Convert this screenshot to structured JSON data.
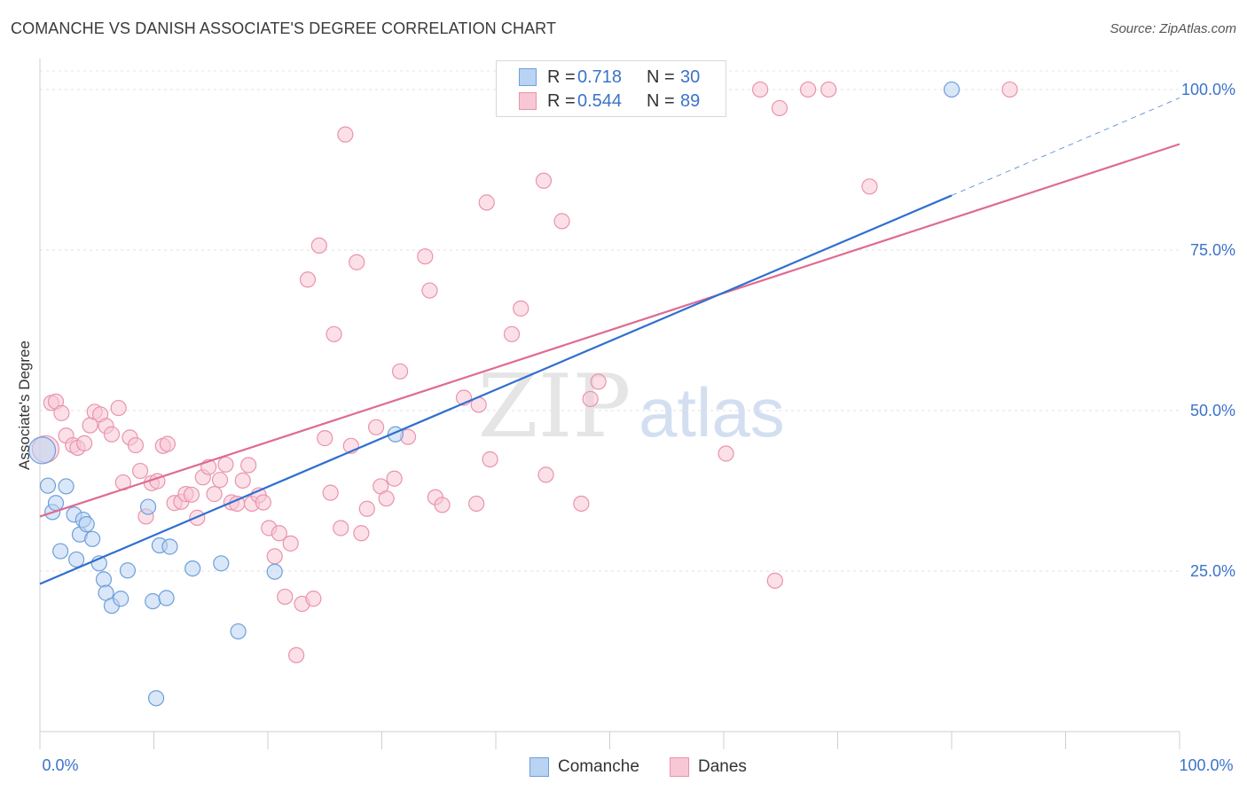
{
  "title": "COMANCHE VS DANISH ASSOCIATE'S DEGREE CORRELATION CHART",
  "source": "Source: ZipAtlas.com",
  "legend": {
    "r_label": "R =",
    "n_label": "N =",
    "comanche": {
      "r": "0.718",
      "n": "30"
    },
    "danes": {
      "r": "0.544",
      "n": "89"
    }
  },
  "bottom_legend": {
    "comanche": "Comanche",
    "danes": "Danes"
  },
  "colors": {
    "comanche_fill": "#b9d3f2",
    "comanche_stroke": "#6f9fda",
    "comanche_line": "#2f6fcf",
    "danes_fill": "#f8c7d5",
    "danes_stroke": "#ea93ac",
    "danes_line": "#df6b92",
    "value_text": "#3b73c9"
  },
  "chart_data": {
    "type": "scatter",
    "title": "COMANCHE VS DANISH ASSOCIATE'S DEGREE CORRELATION CHART",
    "xlabel": "",
    "ylabel": "Associate's Degree",
    "xlim": [
      0,
      100
    ],
    "ylim": [
      0,
      104
    ],
    "x_tick_labels": [
      "0.0%",
      "100.0%"
    ],
    "y_ticks": [
      {
        "value": 25,
        "label": "25.0%"
      },
      {
        "value": 50,
        "label": "50.0%"
      },
      {
        "value": 75,
        "label": "75.0%"
      },
      {
        "value": 100,
        "label": "100.0%"
      }
    ],
    "watermark": {
      "zip": "ZIP",
      "atlas": "atlas"
    },
    "series": [
      {
        "name": "Comanche",
        "r": 0.718,
        "n": 30,
        "trend": {
          "x0": 0,
          "y0": 23,
          "x1": 80,
          "y1": 83.5,
          "dash_to_x": 100,
          "dash_to_y": 98.7
        },
        "points": [
          [
            0.2,
            43.8
          ],
          [
            0.7,
            38.3
          ],
          [
            1.1,
            34.2
          ],
          [
            1.4,
            35.6
          ],
          [
            1.8,
            28.1
          ],
          [
            2.3,
            38.2
          ],
          [
            3.0,
            33.8
          ],
          [
            3.2,
            26.8
          ],
          [
            3.5,
            30.7
          ],
          [
            3.8,
            33.0
          ],
          [
            4.1,
            32.3
          ],
          [
            4.6,
            30.0
          ],
          [
            5.2,
            26.2
          ],
          [
            5.6,
            23.7
          ],
          [
            5.8,
            21.6
          ],
          [
            6.3,
            19.6
          ],
          [
            7.1,
            20.7
          ],
          [
            7.7,
            25.1
          ],
          [
            9.5,
            35.0
          ],
          [
            9.9,
            20.3
          ],
          [
            10.2,
            5.2
          ],
          [
            10.5,
            29.0
          ],
          [
            11.1,
            20.8
          ],
          [
            11.4,
            28.8
          ],
          [
            13.4,
            25.4
          ],
          [
            15.9,
            26.2
          ],
          [
            17.4,
            15.6
          ],
          [
            20.6,
            24.9
          ],
          [
            31.2,
            46.3
          ],
          [
            80.0,
            100.0
          ]
        ]
      },
      {
        "name": "Danes",
        "r": 0.544,
        "n": 89,
        "trend": {
          "x0": 0,
          "y0": 33.5,
          "x1": 100,
          "y1": 91.5
        },
        "points": [
          [
            0.5,
            44.0
          ],
          [
            1.0,
            51.2
          ],
          [
            1.4,
            51.4
          ],
          [
            1.9,
            49.6
          ],
          [
            2.3,
            46.1
          ],
          [
            2.9,
            44.6
          ],
          [
            3.3,
            44.2
          ],
          [
            3.9,
            44.9
          ],
          [
            4.4,
            47.7
          ],
          [
            4.8,
            49.8
          ],
          [
            5.3,
            49.4
          ],
          [
            5.8,
            47.6
          ],
          [
            6.3,
            46.3
          ],
          [
            6.9,
            50.4
          ],
          [
            7.3,
            38.8
          ],
          [
            7.9,
            45.8
          ],
          [
            8.4,
            44.6
          ],
          [
            8.8,
            40.6
          ],
          [
            9.3,
            33.5
          ],
          [
            9.8,
            38.7
          ],
          [
            10.3,
            39.0
          ],
          [
            10.8,
            44.5
          ],
          [
            11.2,
            44.8
          ],
          [
            11.8,
            35.6
          ],
          [
            12.4,
            35.8
          ],
          [
            12.8,
            37.0
          ],
          [
            13.3,
            36.9
          ],
          [
            13.8,
            33.3
          ],
          [
            14.3,
            39.6
          ],
          [
            14.8,
            41.2
          ],
          [
            15.3,
            37.0
          ],
          [
            15.8,
            39.2
          ],
          [
            16.3,
            41.6
          ],
          [
            16.8,
            35.7
          ],
          [
            17.3,
            35.5
          ],
          [
            17.8,
            39.1
          ],
          [
            18.3,
            41.5
          ],
          [
            18.6,
            35.5
          ],
          [
            19.2,
            36.8
          ],
          [
            19.6,
            35.7
          ],
          [
            20.1,
            31.7
          ],
          [
            20.6,
            27.3
          ],
          [
            21.0,
            30.9
          ],
          [
            21.5,
            21.0
          ],
          [
            22.0,
            29.3
          ],
          [
            22.5,
            11.9
          ],
          [
            23.0,
            19.9
          ],
          [
            23.5,
            70.4
          ],
          [
            24.0,
            20.7
          ],
          [
            24.5,
            75.7
          ],
          [
            25.0,
            45.7
          ],
          [
            25.5,
            37.2
          ],
          [
            25.8,
            61.9
          ],
          [
            26.4,
            31.7
          ],
          [
            26.8,
            93.0
          ],
          [
            27.3,
            44.5
          ],
          [
            27.8,
            73.1
          ],
          [
            28.2,
            30.9
          ],
          [
            28.7,
            34.7
          ],
          [
            29.5,
            47.4
          ],
          [
            29.9,
            38.2
          ],
          [
            30.4,
            36.3
          ],
          [
            31.1,
            39.4
          ],
          [
            31.6,
            56.1
          ],
          [
            32.3,
            45.9
          ],
          [
            33.8,
            74.0
          ],
          [
            34.2,
            68.7
          ],
          [
            34.7,
            36.5
          ],
          [
            35.3,
            35.3
          ],
          [
            37.2,
            52.0
          ],
          [
            38.3,
            35.5
          ],
          [
            38.5,
            50.9
          ],
          [
            39.2,
            82.4
          ],
          [
            39.5,
            42.4
          ],
          [
            41.4,
            61.9
          ],
          [
            42.2,
            65.9
          ],
          [
            44.2,
            85.8
          ],
          [
            44.4,
            40.0
          ],
          [
            45.8,
            79.5
          ],
          [
            47.5,
            35.5
          ],
          [
            48.3,
            51.8
          ],
          [
            49.0,
            54.5
          ],
          [
            60.2,
            43.3
          ],
          [
            63.2,
            100.0
          ],
          [
            64.5,
            23.5
          ],
          [
            64.9,
            97.1
          ],
          [
            67.4,
            100.0
          ],
          [
            69.2,
            100.0
          ],
          [
            72.8,
            84.9
          ],
          [
            85.1,
            100.0
          ]
        ]
      }
    ]
  }
}
